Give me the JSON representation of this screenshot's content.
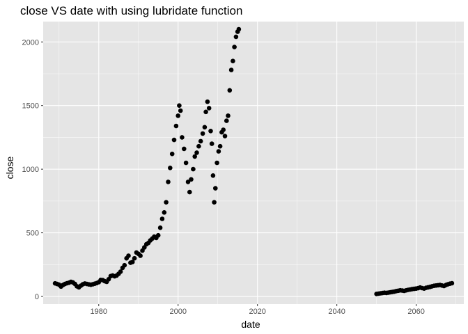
{
  "chart_data": {
    "type": "scatter",
    "title": "close VS date with using lubridate function",
    "xlabel": "date",
    "ylabel": "close",
    "xlim": [
      1966,
      2072
    ],
    "ylim": [
      -60,
      2160
    ],
    "x_ticks": [
      1980,
      2000,
      2020,
      2040,
      2060
    ],
    "y_ticks": [
      0,
      500,
      1000,
      1500,
      2000
    ],
    "x_tick_labels": [
      "1980",
      "2000",
      "2020",
      "2040",
      "2060"
    ],
    "y_tick_labels": [
      "0",
      "500",
      "1000",
      "1500",
      "2000"
    ],
    "grid": true,
    "colors": {
      "panel_background": "#e5e5e5",
      "grid_line": "#ffffff",
      "point": "#000000",
      "tick_label": "#4d4d4d"
    },
    "series": [
      {
        "points": [
          [
            1969.0,
            103
          ],
          [
            1969.5,
            98
          ],
          [
            1970.0,
            92
          ],
          [
            1970.5,
            78
          ],
          [
            1971.0,
            90
          ],
          [
            1971.5,
            98
          ],
          [
            1972.0,
            104
          ],
          [
            1972.5,
            108
          ],
          [
            1973.0,
            115
          ],
          [
            1973.5,
            110
          ],
          [
            1974.0,
            98
          ],
          [
            1974.5,
            80
          ],
          [
            1975.0,
            72
          ],
          [
            1975.5,
            85
          ],
          [
            1976.0,
            96
          ],
          [
            1976.5,
            102
          ],
          [
            1977.0,
            98
          ],
          [
            1977.5,
            95
          ],
          [
            1978.0,
            92
          ],
          [
            1978.5,
            96
          ],
          [
            1979.0,
            100
          ],
          [
            1979.5,
            105
          ],
          [
            1980.0,
            112
          ],
          [
            1980.5,
            130
          ],
          [
            1981.0,
            128
          ],
          [
            1981.5,
            120
          ],
          [
            1982.0,
            115
          ],
          [
            1982.5,
            135
          ],
          [
            1983.0,
            160
          ],
          [
            1983.5,
            165
          ],
          [
            1984.0,
            158
          ],
          [
            1984.5,
            164
          ],
          [
            1985.0,
            178
          ],
          [
            1985.5,
            195
          ],
          [
            1986.0,
            225
          ],
          [
            1986.5,
            245
          ],
          [
            1987.0,
            300
          ],
          [
            1987.5,
            320
          ],
          [
            1988.0,
            265
          ],
          [
            1988.5,
            270
          ],
          [
            1989.0,
            300
          ],
          [
            1989.5,
            345
          ],
          [
            1990.0,
            335
          ],
          [
            1990.5,
            320
          ],
          [
            1991.0,
            360
          ],
          [
            1991.5,
            385
          ],
          [
            1992.0,
            410
          ],
          [
            1992.5,
            420
          ],
          [
            1993.0,
            440
          ],
          [
            1993.5,
            455
          ],
          [
            1994.0,
            470
          ],
          [
            1994.5,
            460
          ],
          [
            1995.0,
            480
          ],
          [
            1995.5,
            540
          ],
          [
            1996.0,
            610
          ],
          [
            1996.5,
            660
          ],
          [
            1997.0,
            740
          ],
          [
            1997.5,
            900
          ],
          [
            1998.0,
            1010
          ],
          [
            1998.5,
            1120
          ],
          [
            1999.0,
            1230
          ],
          [
            1999.5,
            1340
          ],
          [
            2000.0,
            1420
          ],
          [
            2000.3,
            1500
          ],
          [
            2000.6,
            1460
          ],
          [
            2001.0,
            1250
          ],
          [
            2001.5,
            1160
          ],
          [
            2002.0,
            1050
          ],
          [
            2002.5,
            900
          ],
          [
            2002.9,
            820
          ],
          [
            2003.3,
            920
          ],
          [
            2003.8,
            1000
          ],
          [
            2004.2,
            1100
          ],
          [
            2004.7,
            1130
          ],
          [
            2005.2,
            1180
          ],
          [
            2005.7,
            1220
          ],
          [
            2006.2,
            1280
          ],
          [
            2006.7,
            1330
          ],
          [
            2007.0,
            1450
          ],
          [
            2007.4,
            1530
          ],
          [
            2007.8,
            1480
          ],
          [
            2008.2,
            1300
          ],
          [
            2008.5,
            1200
          ],
          [
            2008.8,
            950
          ],
          [
            2009.1,
            740
          ],
          [
            2009.4,
            850
          ],
          [
            2009.8,
            1050
          ],
          [
            2010.2,
            1140
          ],
          [
            2010.6,
            1180
          ],
          [
            2011.0,
            1290
          ],
          [
            2011.4,
            1310
          ],
          [
            2011.8,
            1260
          ],
          [
            2012.2,
            1380
          ],
          [
            2012.6,
            1420
          ],
          [
            2013.0,
            1620
          ],
          [
            2013.4,
            1780
          ],
          [
            2013.8,
            1850
          ],
          [
            2014.2,
            1960
          ],
          [
            2014.6,
            2040
          ],
          [
            2015.0,
            2080
          ],
          [
            2015.3,
            2100
          ],
          [
            2050.0,
            20
          ],
          [
            2050.5,
            22
          ],
          [
            2051.0,
            25
          ],
          [
            2051.5,
            27
          ],
          [
            2052.0,
            29
          ],
          [
            2052.5,
            28
          ],
          [
            2053.0,
            30
          ],
          [
            2053.5,
            33
          ],
          [
            2054.0,
            35
          ],
          [
            2054.5,
            38
          ],
          [
            2055.0,
            42
          ],
          [
            2055.5,
            45
          ],
          [
            2056.0,
            48
          ],
          [
            2056.5,
            46
          ],
          [
            2057.0,
            44
          ],
          [
            2057.5,
            48
          ],
          [
            2058.0,
            52
          ],
          [
            2058.5,
            55
          ],
          [
            2059.0,
            58
          ],
          [
            2059.5,
            60
          ],
          [
            2060.0,
            62
          ],
          [
            2060.5,
            65
          ],
          [
            2061.0,
            70
          ],
          [
            2061.5,
            66
          ],
          [
            2062.0,
            62
          ],
          [
            2062.5,
            68
          ],
          [
            2063.0,
            72
          ],
          [
            2063.5,
            75
          ],
          [
            2064.0,
            80
          ],
          [
            2064.5,
            84
          ],
          [
            2065.0,
            86
          ],
          [
            2065.5,
            88
          ],
          [
            2066.0,
            90
          ],
          [
            2066.5,
            86
          ],
          [
            2067.0,
            82
          ],
          [
            2067.5,
            90
          ],
          [
            2068.0,
            96
          ],
          [
            2068.5,
            100
          ],
          [
            2069.0,
            104
          ]
        ]
      }
    ]
  }
}
